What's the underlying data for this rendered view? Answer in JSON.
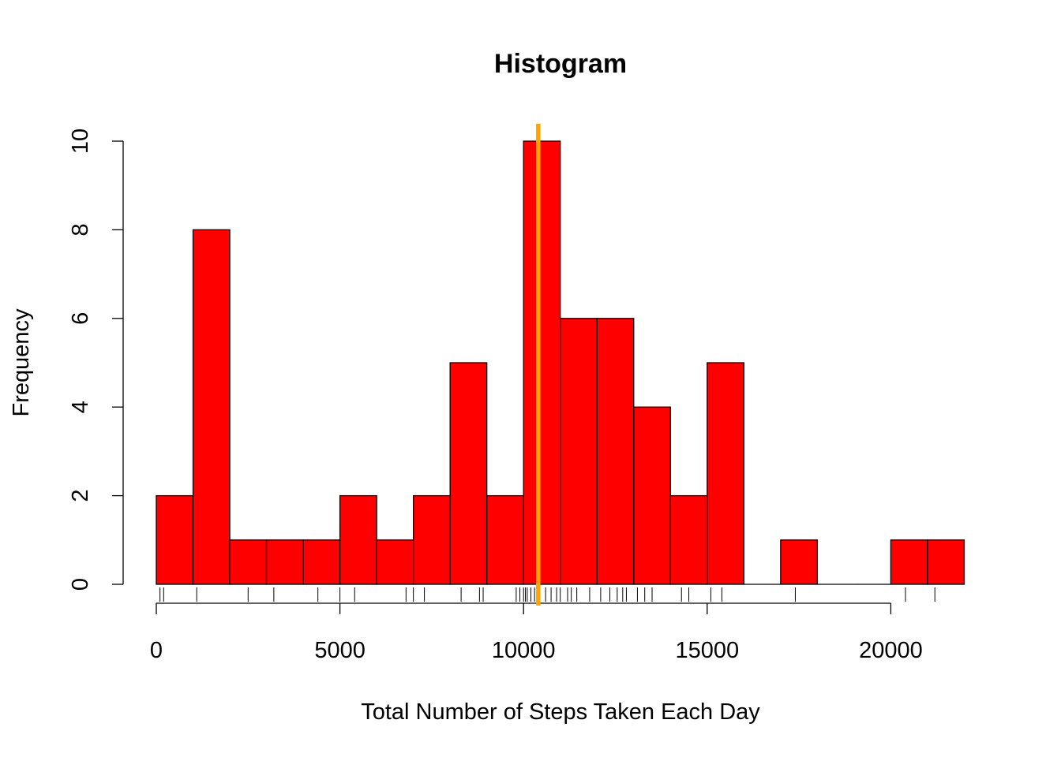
{
  "chart_data": {
    "type": "bar",
    "title": "Histogram",
    "xlabel": "Total Number of Steps Taken Each Day",
    "ylabel": "Frequency",
    "bin_width": 1000,
    "bins_start": [
      0,
      1000,
      2000,
      3000,
      4000,
      5000,
      6000,
      7000,
      8000,
      9000,
      10000,
      11000,
      12000,
      13000,
      14000,
      15000,
      16000,
      17000,
      18000,
      19000,
      20000,
      21000
    ],
    "values": [
      2,
      8,
      1,
      1,
      1,
      2,
      1,
      2,
      5,
      2,
      10,
      6,
      6,
      4,
      2,
      5,
      0,
      1,
      0,
      0,
      1,
      1
    ],
    "bar_color": "#ff0000",
    "xlim": [
      0,
      22000
    ],
    "ylim": [
      0,
      10
    ],
    "x_ticks": [
      0,
      5000,
      10000,
      15000,
      20000
    ],
    "x_tick_labels": [
      "0",
      "5000",
      "10000",
      "15000",
      "20000"
    ],
    "y_ticks": [
      0,
      2,
      4,
      6,
      8,
      10
    ],
    "y_tick_labels": [
      "0",
      "2",
      "4",
      "6",
      "8",
      "10"
    ],
    "mean_line": {
      "x": 10400,
      "color": "#ffa500"
    },
    "rug": [
      100,
      200,
      1100,
      2500,
      3200,
      4400,
      5000,
      5400,
      6800,
      7000,
      7300,
      8300,
      8800,
      8900,
      9800,
      9900,
      10000,
      10050,
      10100,
      10200,
      10300,
      10400,
      10600,
      10750,
      10900,
      11000,
      11200,
      11300,
      11450,
      11800,
      12100,
      12350,
      12550,
      12700,
      12800,
      13100,
      13300,
      13500,
      14300,
      14500,
      15100,
      15400,
      17400,
      20400,
      21200
    ],
    "grid": false,
    "legend": "none"
  }
}
